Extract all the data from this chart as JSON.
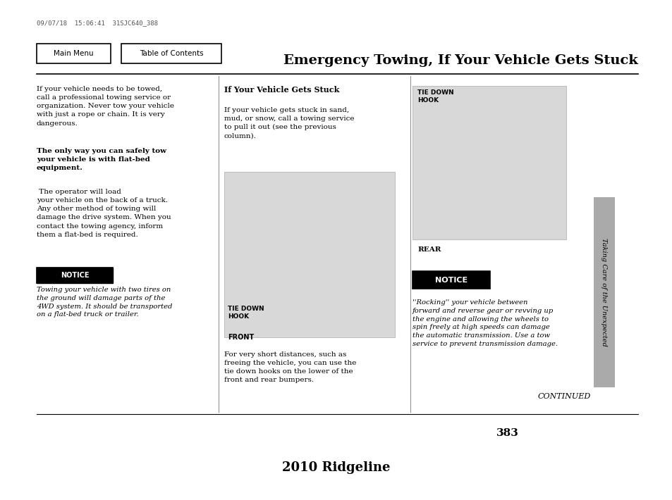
{
  "bg_color": "#ffffff",
  "timestamp": "09/07/18  15:06:41  31SJC640_388",
  "title": "Emergency Towing, If Your Vehicle Gets Stuck",
  "footer_text": "2010 Ridgeline",
  "page_number": "383",
  "nav_buttons": [
    "Main Menu",
    "Table of Contents"
  ],
  "sidebar_text": "Taking Care of the Unexpected",
  "continued_text": "CONTINUED",
  "gray_img_bg": "#d8d8d8",
  "gray_sidebar_bg": "#aaaaaa",
  "notice_label_bg": "#000000",
  "notice_label_color": "#ffffff",
  "col1_text1": "If your vehicle needs to be towed,\ncall a professional towing service or\norganization. Never tow your vehicle\nwith just a rope or chain. It is very\ndangerous.",
  "col1_bold": "The only way you can safely tow\nyour vehicle is with flat-bed\nequipment.",
  "col1_text2": " The operator will load\nyour vehicle on the back of a truck.\nAny other method of towing will\ndamage the drive system. When you\ncontact the towing agency, inform\nthem a flat-bed is required.",
  "col1_notice_italic": "Towing your vehicle with two tires on\nthe ground will damage parts of the\n4WD system. It should be transported\non a flat-bed truck or trailer.",
  "col2_header": "If Your Vehicle Gets Stuck",
  "col2_text1": "If your vehicle gets stuck in sand,\nmud, or snow, call a towing service\nto pull it out (see the previous\ncolumn).",
  "col2_tie_label": "TIE DOWN\nHOOK",
  "col2_front_label": "FRONT",
  "col2_text2": "For very short distances, such as\nfreeing the vehicle, you can use the\ntie down hooks on the lower of the\nfront and rear bumpers.",
  "col3_tie_label": "TIE DOWN\nHOOK",
  "col3_rear_label": "REAR",
  "col3_notice_italic": "''Rocking'' your vehicle between\nforward and reverse gear or revving up\nthe engine and allowing the wheels to\nspin freely at high speeds can damage\nthe automatic transmission. Use a tow\nservice to prevent transmission damage."
}
